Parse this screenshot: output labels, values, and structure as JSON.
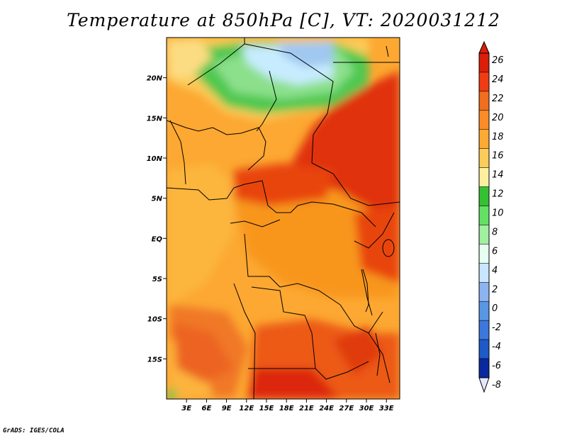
{
  "title": "Temperature at 850hPa [C], VT: 2020031212",
  "credit": "GrADS: IGES/COLA",
  "map": {
    "variable": "Temperature at 850hPa",
    "units": "C",
    "valid_time": "2020031212",
    "lat_labels": [
      "20N",
      "15N",
      "10N",
      "5N",
      "EQ",
      "5S",
      "10S",
      "15S"
    ],
    "lat_values": [
      20,
      15,
      10,
      5,
      0,
      -5,
      -10,
      -15
    ],
    "lon_labels": [
      "3E",
      "6E",
      "9E",
      "12E",
      "15E",
      "18E",
      "21E",
      "24E",
      "27E",
      "30E",
      "33E"
    ],
    "lon_values": [
      3,
      6,
      9,
      12,
      15,
      18,
      21,
      24,
      27,
      30,
      33
    ],
    "lat_range": [
      -20,
      25
    ],
    "lon_range": [
      0,
      35
    ],
    "regions": {
      "sahara_cool_core": "#a0c8f0",
      "sahara_cool_edge": "#c8e6ff",
      "green_band": "#50c850",
      "warm_background": "#fca832",
      "hot_east": "#e0300c"
    }
  },
  "colorbar": {
    "levels": [
      "26",
      "24",
      "22",
      "20",
      "18",
      "16",
      "14",
      "12",
      "10",
      "8",
      "6",
      "4",
      "2",
      "0",
      "-2",
      "-4",
      "-6",
      "-8"
    ],
    "colors": [
      "#dc1e0a",
      "#f03c14",
      "#f06e1e",
      "#fc8c28",
      "#fcaa32",
      "#fccc5a",
      "#fcf0a0",
      "#34c234",
      "#64e064",
      "#a0f0a0",
      "#e6fff0",
      "#c8e6ff",
      "#8cb4f0",
      "#5a96e6",
      "#3c78dc",
      "#1e5ac8",
      "#0a28a0",
      "#000064"
    ]
  }
}
